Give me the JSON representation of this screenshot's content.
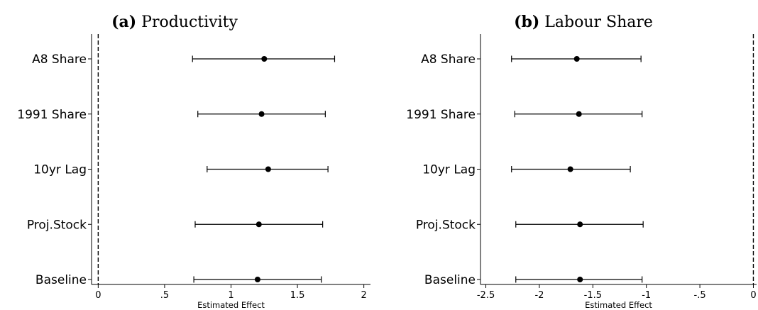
{
  "chart_data": [
    {
      "type": "scatter",
      "panel_label": "(a)",
      "title": "Productivity",
      "xlabel": "Estimated Effect",
      "ylabel": "",
      "categories": [
        "A8 Share",
        "1991 Share",
        "10yr Lag",
        "Proj.Stock",
        "Baseline"
      ],
      "estimates": [
        1.25,
        1.23,
        1.28,
        1.21,
        1.2
      ],
      "ci_lower": [
        0.71,
        0.75,
        0.82,
        0.73,
        0.72
      ],
      "ci_upper": [
        1.78,
        1.71,
        1.73,
        1.69,
        1.68
      ],
      "xticks": [
        0,
        0.5,
        1,
        1.5,
        2
      ],
      "xtick_labels": [
        "0",
        ".5",
        "1",
        "1.5",
        "2"
      ],
      "xlim": [
        -0.05,
        2.05
      ],
      "reference_line_x": 0,
      "reference_line_style": "dashed",
      "grid": false,
      "marker_color": "#000000"
    },
    {
      "type": "scatter",
      "panel_label": "(b)",
      "title": "Labour Share",
      "xlabel": "Estimated Effect",
      "ylabel": "",
      "categories": [
        "A8 Share",
        "1991 Share",
        "10yr Lag",
        "Proj.Stock",
        "Baseline"
      ],
      "estimates": [
        -1.65,
        -1.63,
        -1.71,
        -1.62,
        -1.62
      ],
      "ci_lower": [
        -2.26,
        -2.23,
        -2.26,
        -2.22,
        -2.22
      ],
      "ci_upper": [
        -1.05,
        -1.04,
        -1.15,
        -1.03,
        -1.04
      ],
      "xticks": [
        -2.5,
        -2,
        -1.5,
        -1,
        -0.5,
        0
      ],
      "xtick_labels": [
        "-2.5",
        "-2",
        "-1.5",
        "-1",
        "-.5",
        "0"
      ],
      "xlim": [
        -2.55,
        0.03
      ],
      "reference_line_x": 0,
      "reference_line_style": "dashed",
      "grid": false,
      "marker_color": "#000000"
    }
  ]
}
